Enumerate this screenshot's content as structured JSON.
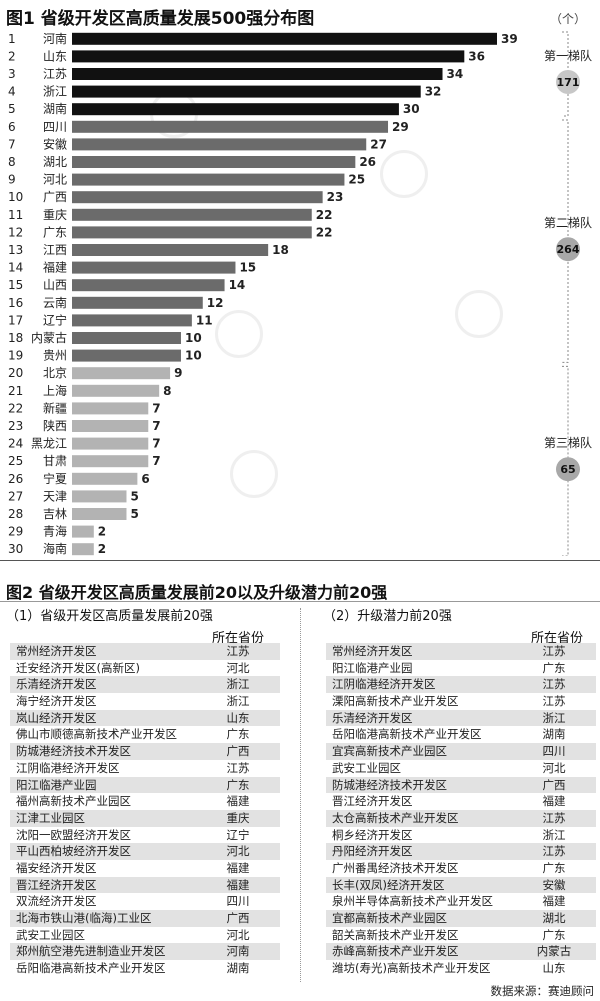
{
  "figure1": {
    "title": "图1 省级开发区高质量发展500强分布图",
    "unit": "（个）"
  },
  "chart_data": {
    "type": "bar",
    "orientation": "horizontal",
    "title": "图1 省级开发区高质量发展500强分布图",
    "unit": "（个）",
    "ranks": [
      "1",
      "2",
      "3",
      "4",
      "5",
      "6",
      "7",
      "8",
      "9",
      "10",
      "11",
      "12",
      "13",
      "14",
      "15",
      "16",
      "17",
      "18",
      "19",
      "20",
      "21",
      "22",
      "23",
      "24",
      "25",
      "26",
      "27",
      "28",
      "29",
      "30"
    ],
    "categories": [
      "河南",
      "山东",
      "江苏",
      "浙江",
      "湖南",
      "四川",
      "安徽",
      "湖北",
      "河北",
      "广西",
      "重庆",
      "广东",
      "江西",
      "福建",
      "山西",
      "云南",
      "辽宁",
      "内蒙古",
      "贵州",
      "北京",
      "上海",
      "新疆",
      "陕西",
      "黑龙江",
      "甘肃",
      "宁夏",
      "天津",
      "吉林",
      "青海",
      "海南"
    ],
    "values": [
      39,
      36,
      34,
      32,
      30,
      29,
      27,
      26,
      25,
      23,
      22,
      22,
      18,
      15,
      14,
      12,
      11,
      10,
      10,
      9,
      8,
      7,
      7,
      7,
      7,
      6,
      5,
      5,
      2,
      2
    ],
    "tiers": [
      {
        "label": "第一梯队",
        "total": "171",
        "color": "#111111",
        "from": 0,
        "to": 4
      },
      {
        "label": "第二梯队",
        "total": "264",
        "color": "#6b6b6b",
        "from": 5,
        "to": 18
      },
      {
        "label": "第三梯队",
        "total": "65",
        "color": "#b3b3b3",
        "from": 19,
        "to": 29
      }
    ],
    "xlim": [
      0,
      39
    ]
  },
  "figure2": {
    "title": "图2 省级开发区高质量发展前20以及升级潜力前20强",
    "left": {
      "subtitle": "（1）省级开发区高质量发展前20强",
      "col_header": "所在省份",
      "rows": [
        {
          "name": "常州经济开发区",
          "province": "江苏"
        },
        {
          "name": "迁安经济开发区(高新区)",
          "province": "河北"
        },
        {
          "name": "乐清经济开发区",
          "province": "浙江"
        },
        {
          "name": "海宁经济开发区",
          "province": "浙江"
        },
        {
          "name": "岚山经济开发区",
          "province": "山东"
        },
        {
          "name": "佛山市顺德高新技术产业开发区",
          "province": "广东"
        },
        {
          "name": "防城港经济技术开发区",
          "province": "广西"
        },
        {
          "name": "江阴临港经济开发区",
          "province": "江苏"
        },
        {
          "name": "阳江临港产业园",
          "province": "广东"
        },
        {
          "name": "福州高新技术产业园区",
          "province": "福建"
        },
        {
          "name": "江津工业园区",
          "province": "重庆"
        },
        {
          "name": "沈阳一欧盟经济开发区",
          "province": "辽宁"
        },
        {
          "name": "平山西柏坡经济开发区",
          "province": "河北"
        },
        {
          "name": "福安经济开发区",
          "province": "福建"
        },
        {
          "name": "晋江经济开发区",
          "province": "福建"
        },
        {
          "name": "双流经济开发区",
          "province": "四川"
        },
        {
          "name": "北海市铁山港(临海)工业区",
          "province": "广西"
        },
        {
          "name": "武安工业园区",
          "province": "河北"
        },
        {
          "name": "郑州航空港先进制造业开发区",
          "province": "河南"
        },
        {
          "name": "岳阳临港高新技术产业开发区",
          "province": "湖南"
        }
      ]
    },
    "right": {
      "subtitle": "（2）升级潜力前20强",
      "col_header": "所在省份",
      "rows": [
        {
          "name": "常州经济开发区",
          "province": "江苏"
        },
        {
          "name": "阳江临港产业园",
          "province": "广东"
        },
        {
          "name": "江阴临港经济开发区",
          "province": "江苏"
        },
        {
          "name": "溧阳高新技术产业开发区",
          "province": "江苏"
        },
        {
          "name": "乐清经济开发区",
          "province": "浙江"
        },
        {
          "name": "岳阳临港高新技术产业开发区",
          "province": "湖南"
        },
        {
          "name": "宜宾高新技术产业园区",
          "province": "四川"
        },
        {
          "name": "武安工业园区",
          "province": "河北"
        },
        {
          "name": "防城港经济技术开发区",
          "province": "广西"
        },
        {
          "name": "晋江经济开发区",
          "province": "福建"
        },
        {
          "name": "太仓高新技术产业开发区",
          "province": "江苏"
        },
        {
          "name": "桐乡经济开发区",
          "province": "浙江"
        },
        {
          "name": "丹阳经济开发区",
          "province": "江苏"
        },
        {
          "name": "广州番禺经济技术开发区",
          "province": "广东"
        },
        {
          "name": "长丰(双凤)经济开发区",
          "province": "安徽"
        },
        {
          "name": "泉州半导体高新技术产业开发区",
          "province": "福建"
        },
        {
          "name": "宜都高新技术产业园区",
          "province": "湖北"
        },
        {
          "name": "韶关高新技术产业开发区",
          "province": "广东"
        },
        {
          "name": "赤峰高新技术产业开发区",
          "province": "内蒙古"
        },
        {
          "name": "潍坊(寿光)高新技术产业开发区",
          "province": "山东"
        }
      ]
    }
  },
  "source": "数据来源：赛迪顾问"
}
